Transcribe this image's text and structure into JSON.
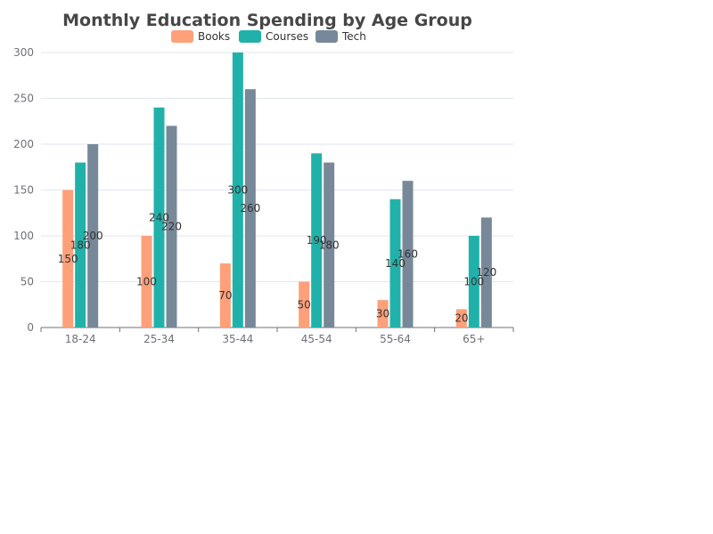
{
  "chart_data": {
    "type": "bar",
    "title": "Monthly Education Spending by Age Group",
    "xlabel": "",
    "ylabel": "",
    "categories": [
      "18-24",
      "25-34",
      "35-44",
      "45-54",
      "55-64",
      "65+"
    ],
    "series": [
      {
        "name": "Books",
        "color": "#FFA07A",
        "values": [
          150,
          100,
          70,
          50,
          30,
          20
        ]
      },
      {
        "name": "Courses",
        "color": "#20B2AA",
        "values": [
          180,
          240,
          300,
          190,
          140,
          100
        ]
      },
      {
        "name": "Tech",
        "color": "#778899",
        "values": [
          200,
          220,
          260,
          180,
          160,
          120
        ]
      }
    ],
    "ylim": [
      0,
      300
    ],
    "yticks": [
      0,
      50,
      100,
      150,
      200,
      250,
      300
    ],
    "grid": true,
    "legend_position": "top-center",
    "data_labels": true
  }
}
